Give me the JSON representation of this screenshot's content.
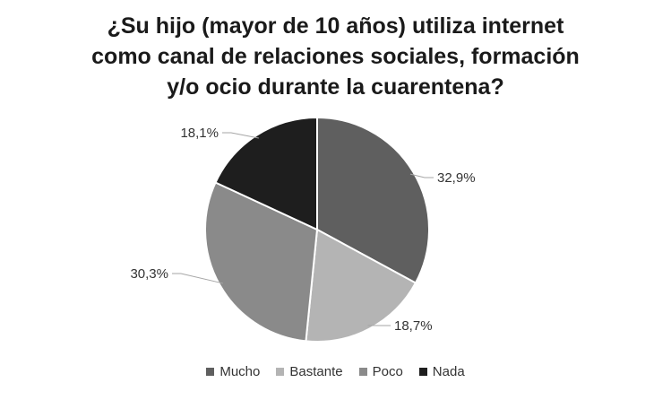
{
  "chart_data": {
    "type": "pie",
    "title_lines": [
      "¿Su hijo (mayor de 10 años)  utiliza internet",
      "como canal de relaciones sociales, formación",
      "y/o ocio durante la cuarentena?"
    ],
    "categories": [
      "Mucho",
      "Bastante",
      "Poco",
      "Nada"
    ],
    "values": [
      32.9,
      18.7,
      30.3,
      18.1
    ],
    "data_labels": [
      "32,9%",
      "18,7%",
      "30,3%",
      "18,1%"
    ],
    "colors": [
      "#5f5f5f",
      "#b4b4b4",
      "#8a8a8a",
      "#1e1e1e"
    ],
    "legend_position": "bottom"
  }
}
